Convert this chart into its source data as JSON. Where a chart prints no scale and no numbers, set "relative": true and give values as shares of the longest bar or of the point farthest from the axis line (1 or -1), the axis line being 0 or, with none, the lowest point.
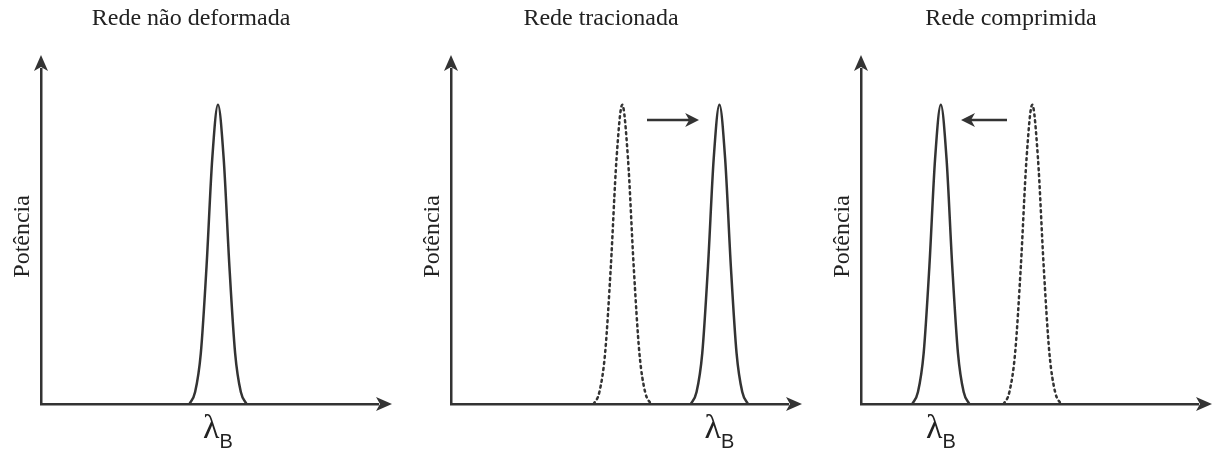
{
  "chart_data": [
    {
      "type": "line",
      "title": "Rede não deformada",
      "ylabel": "Potência",
      "relative": true,
      "tick_labels": false,
      "grid": false,
      "legend": false,
      "marker": "none",
      "annotations": [
        "λ$_{B}$"
      ],
      "categories": [
        null,
        null,
        null,
        null,
        null,
        null,
        null,
        null,
        null,
        null,
        null,
        null,
        null,
        null,
        null,
        null,
        null,
        null,
        null,
        null,
        null,
        null,
        null,
        null,
        null,
        null,
        null,
        null,
        null,
        null,
        null,
        null,
        null,
        null,
        null,
        null,
        null,
        null,
        null,
        null,
        null,
        null,
        null,
        null,
        null,
        null,
        null,
        null,
        null,
        null,
        null,
        null,
        null,
        null,
        null,
        null,
        null,
        null,
        null,
        null
      ],
      "series": [
        {
          "color": "#333333",
          "line_style": "solid",
          "values": [
            null,
            null,
            null,
            null,
            null,
            null,
            null,
            null,
            null,
            null,
            null,
            null,
            null,
            null,
            null,
            null,
            null,
            null,
            null,
            null,
            null,
            null,
            null,
            null,
            null,
            null,
            0,
            0.04,
            0.17,
            0.46,
            0.82,
            1,
            0.82,
            0.46,
            0.17,
            0.04,
            0,
            null,
            null,
            null,
            null,
            null,
            null,
            null,
            null,
            null,
            null,
            null,
            null,
            null,
            null,
            null,
            null,
            null,
            null,
            null,
            null,
            null,
            null,
            null
          ]
        }
      ]
    },
    {
      "type": "line",
      "title": "Rede tracionada",
      "ylabel": "Potência",
      "relative": true,
      "tick_labels": false,
      "grid": false,
      "legend": false,
      "marker": "none",
      "annotations": [
        "λ$_{B}$"
      ],
      "categories": [
        null,
        null,
        null,
        null,
        null,
        null,
        null,
        null,
        null,
        null,
        null,
        null,
        null,
        null,
        null,
        null,
        null,
        null,
        null,
        null,
        null,
        null,
        null,
        null,
        null,
        null,
        null,
        null,
        null,
        null,
        null,
        null,
        null,
        null,
        null,
        null,
        null,
        null,
        null,
        null,
        null,
        null,
        null,
        null,
        null,
        null,
        null,
        null,
        null,
        null,
        null,
        null,
        null,
        null,
        null,
        null,
        null,
        null,
        null,
        null
      ],
      "series": [
        {
          "color": "#333333",
          "line_style": "solid",
          "values": [
            null,
            null,
            null,
            null,
            null,
            null,
            null,
            null,
            null,
            null,
            null,
            null,
            null,
            null,
            null,
            null,
            null,
            null,
            null,
            null,
            null,
            null,
            null,
            null,
            null,
            null,
            null,
            null,
            null,
            null,
            null,
            null,
            null,
            null,
            null,
            null,
            null,
            null,
            null,
            null,
            null,
            null,
            0,
            0.04,
            0.17,
            0.46,
            0.82,
            1,
            0.82,
            0.46,
            0.17,
            0.04,
            0,
            null,
            null,
            null,
            null,
            null,
            null,
            null
          ]
        },
        {
          "color": "#333333",
          "line_style": "dotted",
          "values": [
            null,
            null,
            null,
            null,
            null,
            null,
            null,
            null,
            null,
            null,
            null,
            null,
            null,
            null,
            null,
            null,
            null,
            null,
            null,
            null,
            null,
            null,
            null,
            null,
            null,
            0,
            0.04,
            0.17,
            0.46,
            0.82,
            1,
            0.82,
            0.46,
            0.17,
            0.04,
            0,
            null,
            null,
            null,
            null,
            null,
            null,
            null,
            null,
            null,
            null,
            null,
            null,
            null,
            null,
            null,
            null,
            null,
            null,
            null,
            null,
            null,
            null,
            null,
            null
          ]
        }
      ]
    },
    {
      "type": "line",
      "title": "Rede comprimida",
      "ylabel": "Potência",
      "relative": true,
      "tick_labels": false,
      "grid": false,
      "legend": false,
      "marker": "none",
      "annotations": [
        "λ$_{B}$"
      ],
      "categories": [
        null,
        null,
        null,
        null,
        null,
        null,
        null,
        null,
        null,
        null,
        null,
        null,
        null,
        null,
        null,
        null,
        null,
        null,
        null,
        null,
        null,
        null,
        null,
        null,
        null,
        null,
        null,
        null,
        null,
        null,
        null,
        null,
        null,
        null,
        null,
        null,
        null,
        null,
        null,
        null,
        null,
        null,
        null,
        null,
        null,
        null,
        null,
        null,
        null,
        null,
        null,
        null,
        null,
        null,
        null,
        null,
        null,
        null,
        null,
        null
      ],
      "series": [
        {
          "color": "#333333",
          "line_style": "solid",
          "values": [
            null,
            null,
            null,
            null,
            null,
            null,
            null,
            null,
            null,
            0,
            0.04,
            0.17,
            0.46,
            0.82,
            1,
            0.82,
            0.46,
            0.17,
            0.04,
            0,
            null,
            null,
            null,
            null,
            null,
            null,
            null,
            null,
            null,
            null,
            null,
            null,
            null,
            null,
            null,
            null,
            null,
            null,
            null,
            null,
            null,
            null,
            null,
            null,
            null,
            null,
            null,
            null,
            null,
            null,
            null,
            null,
            null,
            null,
            null,
            null,
            null,
            null,
            null,
            null
          ]
        },
        {
          "color": "#333333",
          "line_style": "dotted",
          "values": [
            null,
            null,
            null,
            null,
            null,
            null,
            null,
            null,
            null,
            null,
            null,
            null,
            null,
            null,
            null,
            null,
            null,
            null,
            null,
            null,
            null,
            null,
            null,
            null,
            null,
            0,
            0.04,
            0.17,
            0.46,
            0.82,
            1,
            0.82,
            0.46,
            0.17,
            0.04,
            0,
            null,
            null,
            null,
            null,
            null,
            null,
            null,
            null,
            null,
            null,
            null,
            null,
            null,
            null,
            null,
            null,
            null,
            null,
            null,
            null,
            null,
            null,
            null,
            null
          ]
        }
      ]
    }
  ]
}
